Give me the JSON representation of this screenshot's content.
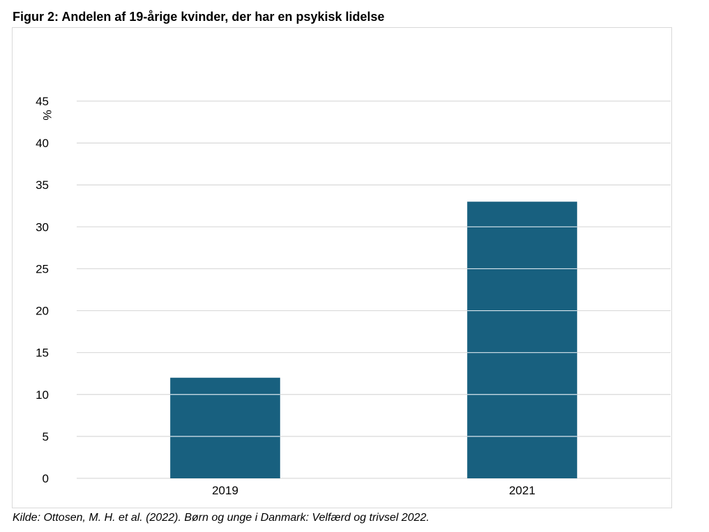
{
  "figure": {
    "title": "Figur 2: Andelen af 19-årige kvinder, der har en psykisk lidelse",
    "source": "Kilde: Ottosen, M. H. et al. (2022). Børn og unge i Danmark: Velfærd og trivsel 2022."
  },
  "chart_data": {
    "type": "bar",
    "title": "Figur 2: Andelen af 19-årige kvinder, der har en psykisk lidelse",
    "xlabel": "",
    "ylabel": "%",
    "categories": [
      "2019",
      "2021"
    ],
    "values": [
      12,
      33
    ],
    "ylim": [
      0,
      45
    ],
    "yticks": [
      0,
      5,
      10,
      15,
      20,
      25,
      30,
      35,
      40,
      45
    ],
    "grid": true,
    "legend": "none",
    "bar_color": "#18607f",
    "grid_color": "#d9d9d9"
  }
}
